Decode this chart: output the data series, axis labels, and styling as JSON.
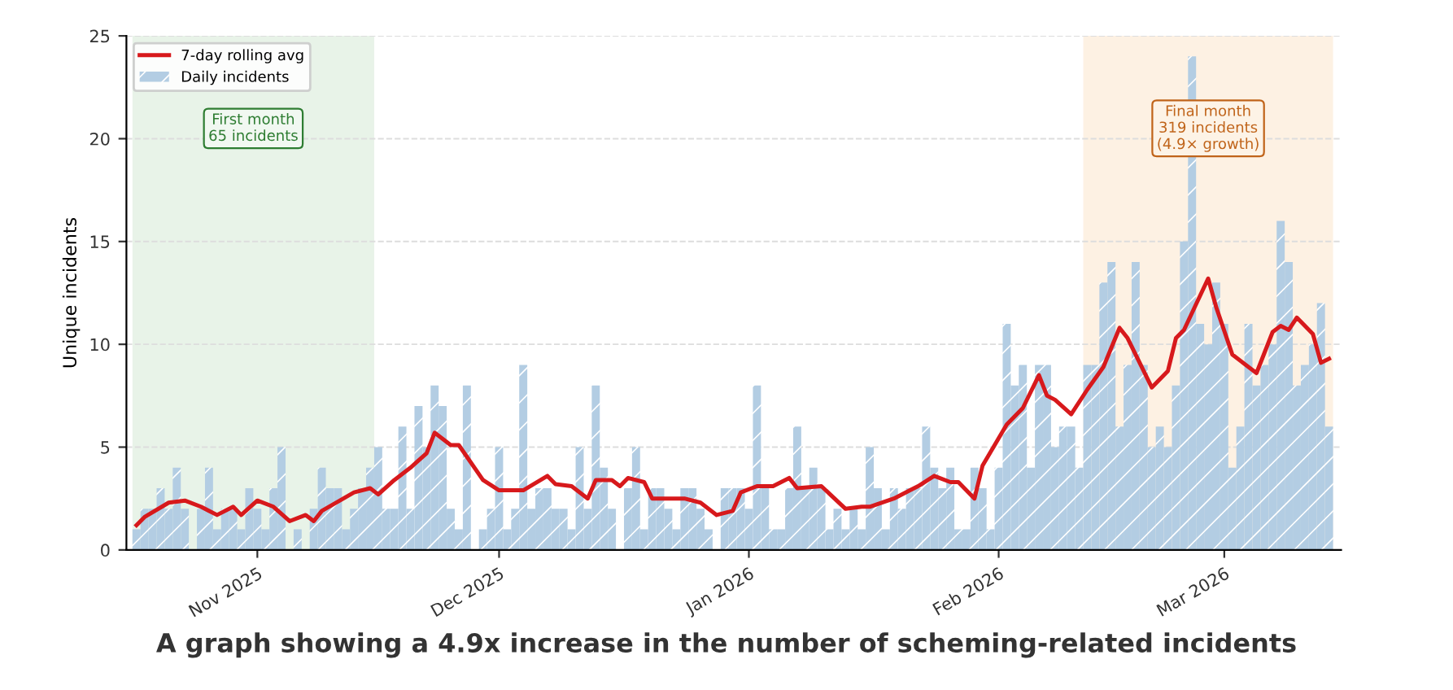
{
  "chart_data": {
    "type": "bar",
    "title": "A graph showing a 4.9x increase in the number of scheming-related incidents",
    "ylabel": "Unique incidents",
    "xlim": [
      "2025-10-15T18:00",
      "2026-03-15T12:00"
    ],
    "ylim": [
      0,
      25
    ],
    "yticks": [
      0,
      5,
      10,
      15,
      20,
      25
    ],
    "xticks": [
      {
        "value": "2025-11-01",
        "label": "Nov 2025"
      },
      {
        "value": "2025-12-01",
        "label": "Dec 2025"
      },
      {
        "value": "2026-01-01",
        "label": "Jan 2026"
      },
      {
        "value": "2026-02-01",
        "label": "Feb 2026"
      },
      {
        "value": "2026-03-01",
        "label": "Mar 2026"
      }
    ],
    "grid": "y",
    "legend": "top left",
    "bands": [
      {
        "axis": "x",
        "from": "2025-10-16T12:00",
        "to": "2025-11-15T12:00",
        "color": "#e8f3e8"
      },
      {
        "axis": "x",
        "from": "2026-02-11T12:00",
        "to": "2026-03-14T12:00",
        "color": "#fdf1e3"
      }
    ],
    "annotations": [
      "First month\n65 incidents",
      "Final month\n319 incidents\n(4.9× growth)"
    ],
    "series": [
      {
        "name": "Daily incidents",
        "color": "#b3cde3",
        "x": [
          "2025-10-17",
          "2025-10-18",
          "2025-10-19",
          "2025-10-20",
          "2025-10-21",
          "2025-10-22",
          "2025-10-23",
          "2025-10-24",
          "2025-10-25",
          "2025-10-26",
          "2025-10-27",
          "2025-10-28",
          "2025-10-29",
          "2025-10-30",
          "2025-10-31",
          "2025-11-01",
          "2025-11-02",
          "2025-11-03",
          "2025-11-04",
          "2025-11-05",
          "2025-11-06",
          "2025-11-07",
          "2025-11-08",
          "2025-11-09",
          "2025-11-10",
          "2025-11-11",
          "2025-11-12",
          "2025-11-13",
          "2025-11-14",
          "2025-11-15",
          "2025-11-16",
          "2025-11-17",
          "2025-11-18",
          "2025-11-19",
          "2025-11-20",
          "2025-11-21",
          "2025-11-22",
          "2025-11-23",
          "2025-11-24",
          "2025-11-25",
          "2025-11-26",
          "2025-11-27",
          "2025-11-28",
          "2025-11-29",
          "2025-11-30",
          "2025-12-01",
          "2025-12-02",
          "2025-12-03",
          "2025-12-04",
          "2025-12-05",
          "2025-12-06",
          "2025-12-07",
          "2025-12-08",
          "2025-12-09",
          "2025-12-10",
          "2025-12-11",
          "2025-12-12",
          "2025-12-13",
          "2025-12-14",
          "2025-12-15",
          "2025-12-16",
          "2025-12-17",
          "2025-12-18",
          "2025-12-19",
          "2025-12-20",
          "2025-12-21",
          "2025-12-22",
          "2025-12-23",
          "2025-12-24",
          "2025-12-25",
          "2025-12-26",
          "2025-12-27",
          "2025-12-28",
          "2025-12-29",
          "2025-12-30",
          "2025-12-31",
          "2026-01-01",
          "2026-01-02",
          "2026-01-03",
          "2026-01-04",
          "2026-01-05",
          "2026-01-06",
          "2026-01-07",
          "2026-01-08",
          "2026-01-09",
          "2026-01-10",
          "2026-01-11",
          "2026-01-12",
          "2026-01-13",
          "2026-01-14",
          "2026-01-15",
          "2026-01-16",
          "2026-01-17",
          "2026-01-18",
          "2026-01-19",
          "2026-01-20",
          "2026-01-21",
          "2026-01-22",
          "2026-01-23",
          "2026-01-24",
          "2026-01-25",
          "2026-01-26",
          "2026-01-27",
          "2026-01-28",
          "2026-01-29",
          "2026-01-30",
          "2026-01-31",
          "2026-02-01",
          "2026-02-02",
          "2026-02-03",
          "2026-02-04",
          "2026-02-05",
          "2026-02-06",
          "2026-02-07",
          "2026-02-08",
          "2026-02-09",
          "2026-02-10",
          "2026-02-11",
          "2026-02-12",
          "2026-02-13",
          "2026-02-14",
          "2026-02-15",
          "2026-02-16",
          "2026-02-17",
          "2026-02-18",
          "2026-02-19",
          "2026-02-20",
          "2026-02-21",
          "2026-02-22",
          "2026-02-23",
          "2026-02-24",
          "2026-02-25",
          "2026-02-26",
          "2026-02-27",
          "2026-02-28",
          "2026-03-01",
          "2026-03-02",
          "2026-03-03",
          "2026-03-04",
          "2026-03-05",
          "2026-03-06",
          "2026-03-07",
          "2026-03-08",
          "2026-03-09",
          "2026-03-10",
          "2026-03-11",
          "2026-03-12",
          "2026-03-13",
          "2026-03-14"
        ],
        "values": [
          1,
          2,
          2,
          3,
          2,
          4,
          2,
          0,
          2,
          4,
          1,
          2,
          2,
          1,
          3,
          2,
          1,
          3,
          5,
          0,
          1,
          0,
          2,
          4,
          3,
          3,
          1,
          2,
          3,
          4,
          5,
          2,
          2,
          6,
          2,
          7,
          5,
          8,
          7,
          2,
          1,
          8,
          0,
          1,
          2,
          5,
          1,
          2,
          9,
          2,
          3,
          3,
          2,
          2,
          1,
          5,
          2,
          8,
          4,
          2,
          0,
          3,
          5,
          1,
          3,
          3,
          2,
          1,
          3,
          3,
          2,
          1,
          0,
          3,
          3,
          3,
          2,
          8,
          3,
          1,
          1,
          3,
          6,
          3,
          4,
          3,
          1,
          2,
          1,
          2,
          1,
          5,
          3,
          1,
          3,
          2,
          3,
          3,
          6,
          4,
          3,
          4,
          1,
          1,
          4,
          3,
          1,
          4,
          11,
          8,
          9,
          4,
          9,
          9,
          5,
          6,
          6,
          4,
          9,
          9,
          13,
          14,
          6,
          9,
          14,
          9,
          5,
          6,
          5,
          8,
          15,
          24,
          11,
          10,
          13,
          11,
          4,
          6,
          11,
          8,
          9,
          10,
          16,
          14,
          8,
          9,
          10,
          12,
          6
        ]
      },
      {
        "name": "7-day rolling avg",
        "type": "line",
        "color": "#d7191c",
        "x": [
          "2025-10-17",
          "2025-10-18",
          "2025-10-21",
          "2025-10-23",
          "2025-10-25",
          "2025-10-27",
          "2025-10-29",
          "2025-10-30",
          "2025-11-01",
          "2025-11-03",
          "2025-11-05",
          "2025-11-07",
          "2025-11-08",
          "2025-11-09",
          "2025-11-13",
          "2025-11-15",
          "2025-11-16",
          "2025-11-18",
          "2025-11-20",
          "2025-11-22",
          "2025-11-23",
          "2025-11-25",
          "2025-11-26",
          "2025-11-29",
          "2025-12-01",
          "2025-12-04",
          "2025-12-07",
          "2025-12-08",
          "2025-12-10",
          "2025-12-12",
          "2025-12-13",
          "2025-12-15",
          "2025-12-16",
          "2025-12-17",
          "2025-12-19",
          "2025-12-20",
          "2025-12-22",
          "2025-12-24",
          "2025-12-26",
          "2025-12-28",
          "2025-12-30",
          "2025-12-31",
          "2026-01-02",
          "2026-01-04",
          "2026-01-06",
          "2026-01-07",
          "2026-01-10",
          "2026-01-13",
          "2026-01-15",
          "2026-01-16",
          "2026-01-19",
          "2026-01-21",
          "2026-01-22",
          "2026-01-24",
          "2026-01-26",
          "2026-01-27",
          "2026-01-29",
          "2026-01-30",
          "2026-02-02",
          "2026-02-04",
          "2026-02-06",
          "2026-02-07",
          "2026-02-08",
          "2026-02-10",
          "2026-02-12",
          "2026-02-14",
          "2026-02-16",
          "2026-02-17",
          "2026-02-20",
          "2026-02-22",
          "2026-02-23",
          "2026-02-24",
          "2026-02-27",
          "2026-02-28",
          "2026-03-02",
          "2026-03-04",
          "2026-03-05",
          "2026-03-07",
          "2026-03-08",
          "2026-03-09",
          "2026-03-10",
          "2026-03-12",
          "2026-03-13",
          "2026-03-14"
        ],
        "values": [
          1.2,
          1.6,
          2.3,
          2.4,
          2.1,
          1.7,
          2.1,
          1.7,
          2.4,
          2.1,
          1.4,
          1.7,
          1.4,
          1.9,
          2.8,
          3.0,
          2.7,
          3.4,
          4.0,
          4.7,
          5.7,
          5.1,
          5.1,
          3.4,
          2.9,
          2.9,
          3.6,
          3.2,
          3.1,
          2.5,
          3.4,
          3.4,
          3.1,
          3.5,
          3.3,
          2.5,
          2.5,
          2.5,
          2.3,
          1.7,
          1.9,
          2.8,
          3.1,
          3.1,
          3.5,
          3.0,
          3.1,
          2.0,
          2.1,
          2.1,
          2.5,
          2.9,
          3.1,
          3.6,
          3.3,
          3.3,
          2.5,
          4.1,
          6.1,
          6.9,
          8.5,
          7.5,
          7.3,
          6.6,
          7.8,
          8.9,
          10.8,
          10.3,
          7.9,
          8.7,
          10.3,
          10.7,
          13.2,
          11.8,
          9.5,
          8.9,
          8.6,
          10.6,
          10.9,
          10.7,
          11.3,
          10.5,
          9.1,
          9.3
        ]
      }
    ]
  }
}
